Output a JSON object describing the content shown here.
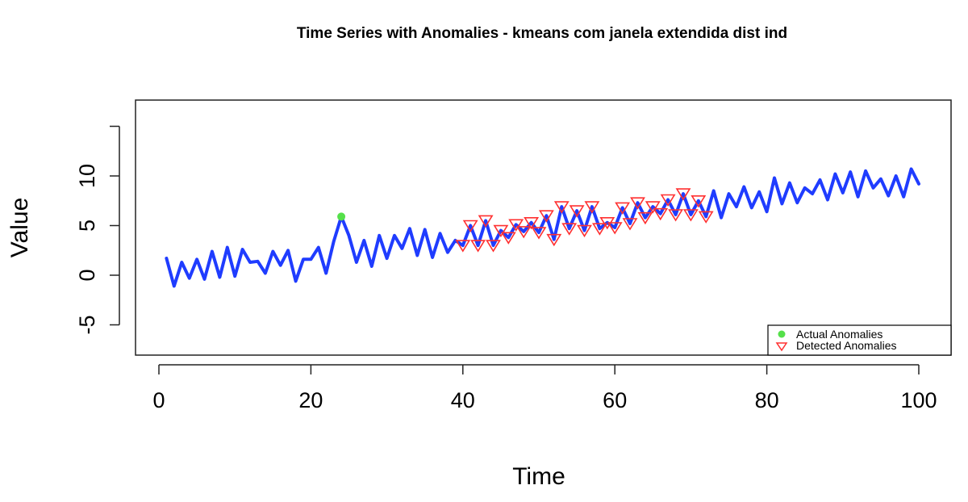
{
  "chart_data": {
    "type": "line",
    "title": "Time Series with Anomalies - kmeans com janela extendida dist ind",
    "xlabel": "Time",
    "ylabel": "Value",
    "xlim": [
      1,
      100
    ],
    "ylim": [
      -8,
      18
    ],
    "x_ticks": [
      0,
      20,
      40,
      60,
      80,
      100
    ],
    "y_ticks": [
      -5,
      0,
      5,
      10,
      15
    ],
    "y_tick_labels": [
      "-5",
      "0",
      "5",
      "10",
      ""
    ],
    "grid": false,
    "legend_position": "bottom-right",
    "colors": {
      "series": "#1f3cff",
      "actual_anomaly": "#55e04a",
      "detected_anomaly": "#ff3030"
    },
    "series": [
      {
        "x": [
          1,
          2,
          3,
          4,
          5,
          6,
          7,
          8,
          9,
          10,
          11,
          12,
          13,
          14,
          15,
          16,
          17,
          18,
          19,
          20,
          21,
          22,
          23,
          24,
          25,
          26,
          27,
          28,
          29,
          30,
          31,
          32,
          33,
          34,
          35,
          36,
          37,
          38,
          39,
          40,
          41,
          42,
          43,
          44,
          45,
          46,
          47,
          48,
          49,
          50,
          51,
          52,
          53,
          54,
          55,
          56,
          57,
          58,
          59,
          60,
          61,
          62,
          63,
          64,
          65,
          66,
          67,
          68,
          69,
          70,
          71,
          72,
          73,
          74,
          75,
          76,
          77,
          78,
          79,
          80,
          81,
          82,
          83,
          84,
          85,
          86,
          87,
          88,
          89,
          90,
          91,
          92,
          93,
          94,
          95,
          96,
          97,
          98,
          99,
          100
        ],
        "values": [
          1.7,
          -1.1,
          1.3,
          -0.3,
          1.6,
          -0.4,
          2.4,
          -0.2,
          2.8,
          -0.1,
          2.6,
          1.3,
          1.4,
          0.2,
          2.4,
          1.0,
          2.5,
          -0.6,
          1.6,
          1.6,
          2.8,
          0.2,
          3.4,
          5.9,
          4.0,
          1.3,
          3.5,
          0.9,
          4.0,
          1.7,
          4.0,
          2.7,
          4.7,
          2.0,
          4.6,
          1.8,
          4.2,
          2.3,
          3.5,
          3.0,
          5.0,
          3.0,
          5.5,
          3.0,
          4.5,
          3.8,
          5.1,
          4.4,
          5.3,
          4.3,
          6.0,
          3.6,
          6.9,
          4.7,
          6.5,
          4.5,
          6.9,
          4.7,
          5.3,
          4.8,
          6.8,
          5.2,
          7.3,
          5.8,
          6.9,
          6.2,
          7.6,
          6.1,
          8.2,
          6.1,
          7.5,
          5.9,
          8.5,
          5.8,
          8.2,
          6.9,
          8.9,
          6.8,
          8.4,
          6.4,
          9.8,
          7.2,
          9.3,
          7.3,
          8.8,
          8.2,
          9.6,
          7.6,
          10.2,
          8.3,
          10.4,
          7.9,
          10.5,
          8.8,
          9.7,
          8.0,
          10.0,
          7.9,
          10.7,
          9.2
        ]
      }
    ],
    "actual_anomalies": [
      {
        "x": 24,
        "y": 5.9
      }
    ],
    "detected_anomalies": [
      {
        "x": 40,
        "y": 3.0
      },
      {
        "x": 41,
        "y": 5.0
      },
      {
        "x": 42,
        "y": 3.0
      },
      {
        "x": 43,
        "y": 5.5
      },
      {
        "x": 44,
        "y": 3.0
      },
      {
        "x": 45,
        "y": 4.5
      },
      {
        "x": 46,
        "y": 3.8
      },
      {
        "x": 47,
        "y": 5.1
      },
      {
        "x": 48,
        "y": 4.4
      },
      {
        "x": 49,
        "y": 5.3
      },
      {
        "x": 50,
        "y": 4.3
      },
      {
        "x": 51,
        "y": 6.0
      },
      {
        "x": 52,
        "y": 3.6
      },
      {
        "x": 53,
        "y": 6.9
      },
      {
        "x": 54,
        "y": 4.7
      },
      {
        "x": 55,
        "y": 6.5
      },
      {
        "x": 56,
        "y": 4.5
      },
      {
        "x": 57,
        "y": 6.9
      },
      {
        "x": 58,
        "y": 4.7
      },
      {
        "x": 59,
        "y": 5.3
      },
      {
        "x": 60,
        "y": 4.8
      },
      {
        "x": 61,
        "y": 6.8
      },
      {
        "x": 62,
        "y": 5.2
      },
      {
        "x": 63,
        "y": 7.3
      },
      {
        "x": 64,
        "y": 5.8
      },
      {
        "x": 65,
        "y": 6.9
      },
      {
        "x": 66,
        "y": 6.2
      },
      {
        "x": 67,
        "y": 7.6
      },
      {
        "x": 68,
        "y": 6.1
      },
      {
        "x": 69,
        "y": 8.2
      },
      {
        "x": 70,
        "y": 6.1
      },
      {
        "x": 71,
        "y": 7.5
      },
      {
        "x": 72,
        "y": 5.9
      }
    ],
    "legend": [
      {
        "label": "Actual Anomalies",
        "symbol": "dot"
      },
      {
        "label": "Detected Anomalies",
        "symbol": "triangle-down"
      }
    ]
  }
}
